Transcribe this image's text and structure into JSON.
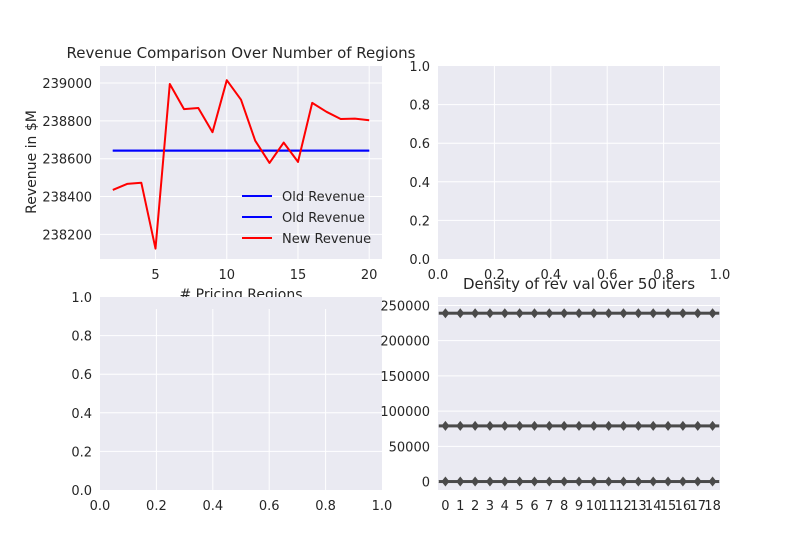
{
  "figure": {
    "background": "#ffffff",
    "axes_facecolor": "#eaeaf2",
    "grid_color": "#ffffff"
  },
  "chart_data": [
    {
      "id": "revenue",
      "type": "line",
      "title": "Revenue Comparison Over Number of Regions",
      "xlabel": "# Pricing Regions",
      "ylabel": "Revenue in $M",
      "xlim": [
        1.1,
        20.9
      ],
      "ylim": [
        238070,
        239090
      ],
      "xticks": [
        5,
        10,
        15,
        20
      ],
      "yticks": [
        238200,
        238400,
        238600,
        238800,
        239000
      ],
      "grid": true,
      "legend_position": "lower right",
      "series": [
        {
          "name": "Old Revenue",
          "color": "#0000ff",
          "x": [
            2,
            20
          ],
          "y": [
            238643,
            238643
          ]
        },
        {
          "name": "Old Revenue",
          "color": "#0000ff",
          "x": [
            2,
            20
          ],
          "y": [
            238643,
            238643
          ]
        },
        {
          "name": "New Revenue",
          "color": "#ff0000",
          "x": [
            2,
            3,
            4,
            5,
            6,
            7,
            8,
            9,
            10,
            11,
            12,
            13,
            14,
            15,
            16,
            17,
            18,
            19,
            20
          ],
          "y": [
            238435,
            238467,
            238473,
            238125,
            238995,
            238862,
            238868,
            238740,
            239015,
            238912,
            238695,
            238578,
            238685,
            238583,
            238895,
            238848,
            238810,
            238812,
            238803
          ]
        }
      ]
    },
    {
      "id": "empty-top-right",
      "type": "line",
      "title": "",
      "xlabel": "",
      "ylabel": "",
      "xlim": [
        0,
        1
      ],
      "ylim": [
        0,
        1
      ],
      "xticks": [
        0.0,
        0.2,
        0.4,
        0.6,
        0.8,
        1.0
      ],
      "yticks": [
        0.0,
        0.2,
        0.4,
        0.6,
        0.8,
        1.0
      ],
      "grid": true,
      "series": []
    },
    {
      "id": "empty-bottom-left",
      "type": "line",
      "title": "",
      "xlabel": "",
      "ylabel": "",
      "xlim": [
        0,
        1
      ],
      "ylim": [
        0,
        1
      ],
      "xticks": [
        0.0,
        0.2,
        0.4,
        0.6,
        0.8,
        1.0
      ],
      "yticks": [
        0.0,
        0.2,
        0.4,
        0.6,
        0.8,
        1.0
      ],
      "grid": true,
      "series": []
    },
    {
      "id": "density",
      "type": "violin",
      "title": "Density of rev val over 50 iters",
      "xlabel": "",
      "ylabel": "",
      "categories": [
        "0",
        "1",
        "2",
        "3",
        "4",
        "5",
        "6",
        "7",
        "8",
        "9",
        "10",
        "11",
        "12",
        "13",
        "14",
        "15",
        "16",
        "17",
        "18"
      ],
      "ylim": [
        -12000,
        262000
      ],
      "yticks": [
        0,
        50000,
        100000,
        150000,
        200000,
        250000
      ],
      "grid": true,
      "color": "#4a4a4a",
      "clusters": [
        239000,
        79000,
        0
      ]
    }
  ]
}
